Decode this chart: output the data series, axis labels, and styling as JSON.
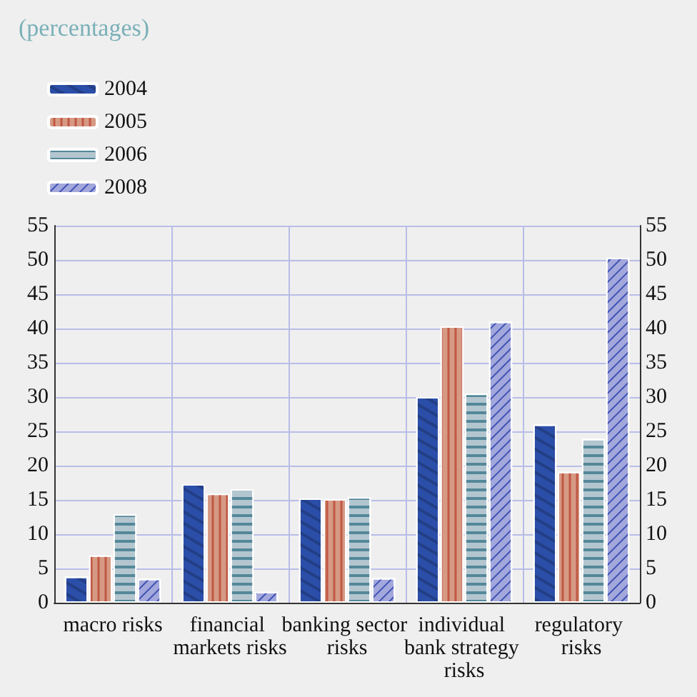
{
  "chart_data": {
    "type": "bar",
    "title": "(percentages)",
    "categories": [
      "macro risks",
      "financial markets risks",
      "banking sector risks",
      "individual bank strategy risks",
      "regulatory risks"
    ],
    "series": [
      {
        "name": "2004",
        "color": "#2b4ea8",
        "values": [
          3.8,
          17.3,
          15.2,
          30,
          26
        ]
      },
      {
        "name": "2005",
        "color": "#d69a84",
        "values": [
          6.9,
          15.9,
          15.1,
          40.3,
          19.1
        ]
      },
      {
        "name": "2006",
        "color": "#b3c6cf",
        "values": [
          12.9,
          16.5,
          15.4,
          30.5,
          23.9
        ]
      },
      {
        "name": "2008",
        "color": "#a3a8dc",
        "values": [
          3.5,
          1.6,
          3.6,
          41,
          50.3
        ]
      }
    ],
    "ylim": [
      0,
      55
    ],
    "yticks": [
      0,
      5,
      10,
      15,
      20,
      25,
      30,
      35,
      40,
      45,
      50,
      55
    ],
    "y2lim": [
      0,
      55
    ],
    "y2ticks": [
      0,
      5,
      10,
      15,
      20,
      25,
      30,
      35,
      40,
      45,
      50,
      55
    ],
    "grid": true,
    "legend": "top left"
  }
}
